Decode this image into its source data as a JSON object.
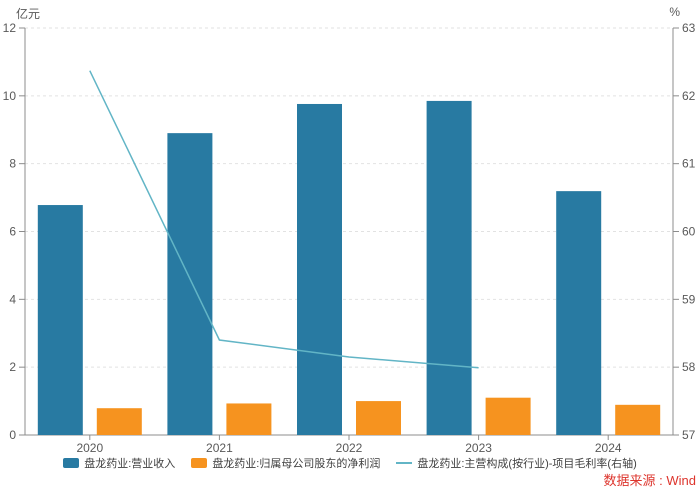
{
  "header": {
    "left_unit": "亿元",
    "right_unit": "%"
  },
  "source": {
    "text": "数据来源 : Wind"
  },
  "colors": {
    "revenue_bar": "#287aa2",
    "profit_bar": "#f6931f",
    "margin_line": "#62b5c6",
    "source_text": "#dd342c",
    "axis": "#8c8c8c",
    "tick_text": "#595959",
    "grid": "#e2e2e2"
  },
  "chart_data": {
    "type": "bar",
    "categories": [
      "2020",
      "2021",
      "2022",
      "2023",
      "2024"
    ],
    "series": [
      {
        "key": "revenue",
        "name": "盘龙药业:营业收入",
        "type": "bar",
        "axis": "left",
        "color": "#287aa2",
        "values": [
          6.78,
          8.9,
          9.76,
          9.85,
          7.19
        ]
      },
      {
        "key": "net_profit",
        "name": "盘龙药业:归属母公司股东的净利润",
        "type": "bar",
        "axis": "left",
        "color": "#f6931f",
        "values": [
          0.79,
          0.93,
          1.0,
          1.1,
          0.89
        ]
      },
      {
        "key": "gross_margin",
        "name": "盘龙药业:主营构成(按行业)-项目毛利率(右轴)",
        "type": "line",
        "axis": "right",
        "color": "#62b5c6",
        "values": [
          62.37,
          58.4,
          58.15,
          57.99,
          null
        ]
      }
    ],
    "left_axis": {
      "label": "亿元",
      "min": 0,
      "max": 12,
      "ticks": [
        0,
        2,
        4,
        6,
        8,
        10,
        12
      ]
    },
    "right_axis": {
      "label": "%",
      "min": 57,
      "max": 63,
      "ticks": [
        57,
        58,
        59,
        60,
        61,
        62,
        63
      ]
    },
    "grid": true,
    "legend_position": "bottom",
    "source_label": "数据来源 : Wind"
  }
}
